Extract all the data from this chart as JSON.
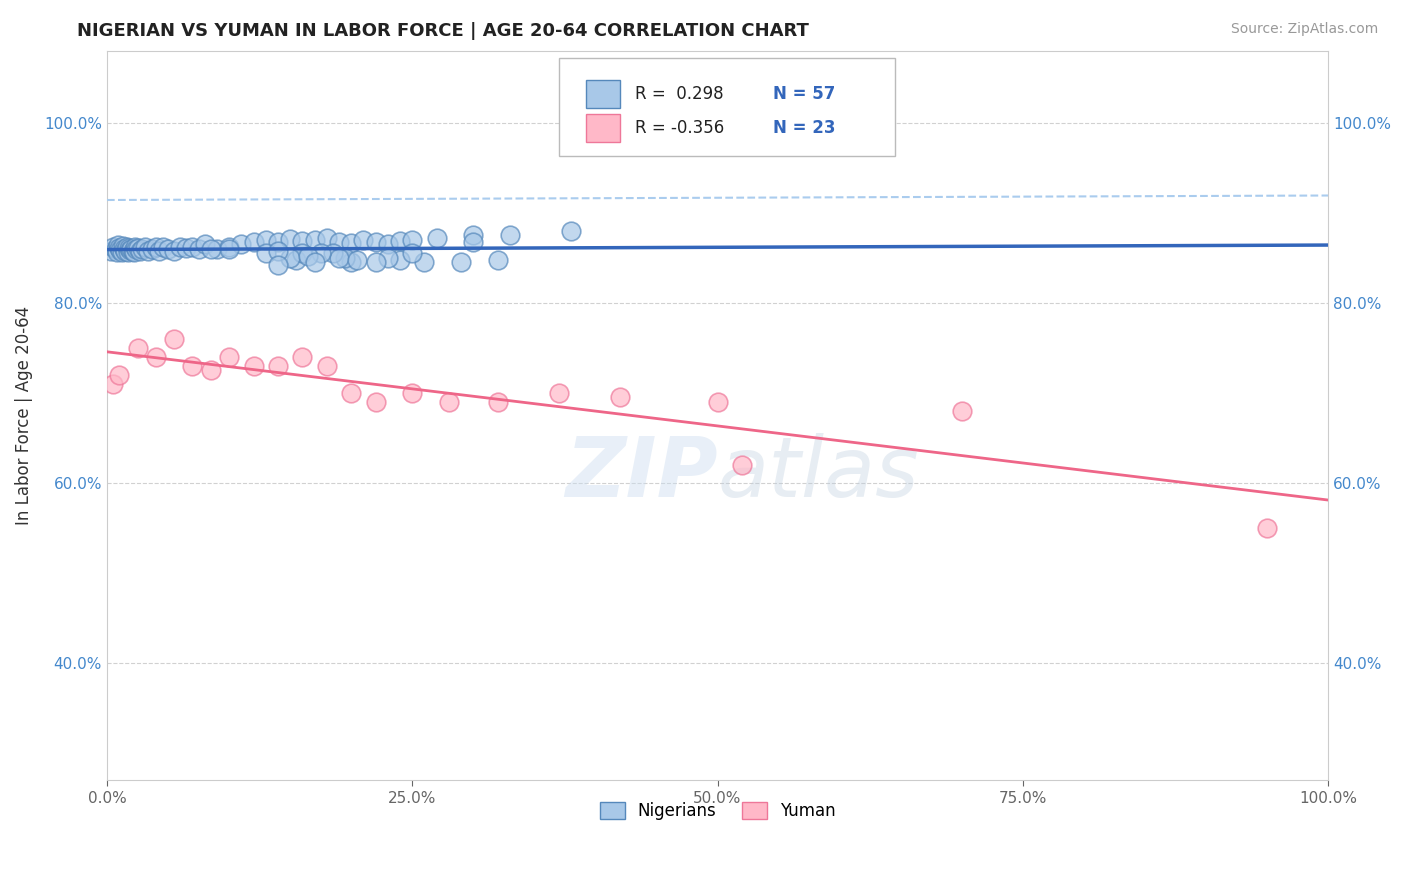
{
  "title": "NIGERIAN VS YUMAN IN LABOR FORCE | AGE 20-64 CORRELATION CHART",
  "source": "Source: ZipAtlas.com",
  "ylabel": "In Labor Force | Age 20-64",
  "xlim": [
    0.0,
    1.0
  ],
  "ylim": [
    0.27,
    1.08
  ],
  "xticks": [
    0.0,
    0.25,
    0.5,
    0.75,
    1.0
  ],
  "yticks": [
    0.4,
    0.6,
    0.8,
    1.0
  ],
  "xticklabels": [
    "0.0%",
    "25.0%",
    "50.0%",
    "75.0%",
    "100.0%"
  ],
  "yticklabels": [
    "40.0%",
    "60.0%",
    "80.0%",
    "100.0%"
  ],
  "legend_r_blue": "0.298",
  "legend_n_blue": "57",
  "legend_r_pink": "-0.356",
  "legend_n_pink": "23",
  "blue_scatter_color": "#A8C8E8",
  "blue_scatter_edge": "#5588BB",
  "pink_scatter_color": "#FFB8C8",
  "pink_scatter_edge": "#EE7799",
  "line_blue": "#3366BB",
  "line_pink": "#EE6688",
  "dashed_color": "#AACCEE",
  "watermark": "ZIPatlas",
  "background_color": "#FFFFFF",
  "grid_color": "#CCCCCC",
  "nigerians_x": [
    0.003,
    0.005,
    0.007,
    0.008,
    0.009,
    0.01,
    0.011,
    0.012,
    0.013,
    0.014,
    0.015,
    0.016,
    0.017,
    0.018,
    0.019,
    0.02,
    0.021,
    0.022,
    0.023,
    0.024,
    0.025,
    0.027,
    0.029,
    0.031,
    0.034,
    0.037,
    0.04,
    0.043,
    0.046,
    0.05,
    0.055,
    0.06,
    0.065,
    0.07,
    0.075,
    0.08,
    0.09,
    0.1,
    0.11,
    0.12,
    0.13,
    0.14,
    0.15,
    0.16,
    0.17,
    0.18,
    0.19,
    0.2,
    0.21,
    0.22,
    0.23,
    0.24,
    0.25,
    0.27,
    0.3,
    0.33,
    0.38
  ],
  "nigerians_y": [
    0.858,
    0.862,
    0.86,
    0.856,
    0.864,
    0.861,
    0.859,
    0.857,
    0.863,
    0.86,
    0.858,
    0.862,
    0.857,
    0.861,
    0.859,
    0.86,
    0.858,
    0.856,
    0.862,
    0.86,
    0.861,
    0.858,
    0.86,
    0.862,
    0.858,
    0.86,
    0.862,
    0.858,
    0.862,
    0.86,
    0.858,
    0.862,
    0.861,
    0.862,
    0.86,
    0.865,
    0.86,
    0.862,
    0.865,
    0.868,
    0.87,
    0.868,
    0.871,
    0.869,
    0.87,
    0.872,
    0.868,
    0.866,
    0.87,
    0.868,
    0.865,
    0.869,
    0.87,
    0.872,
    0.875,
    0.875,
    0.88
  ],
  "nigerians_x_extra": [
    0.2,
    0.3,
    0.195,
    0.155,
    0.185,
    0.24,
    0.1,
    0.13,
    0.16,
    0.19,
    0.205,
    0.23,
    0.26,
    0.29,
    0.32,
    0.25,
    0.22,
    0.15,
    0.085,
    0.175,
    0.14,
    0.165,
    0.14,
    0.17
  ],
  "nigerians_y_extra": [
    0.845,
    0.868,
    0.85,
    0.848,
    0.855,
    0.848,
    0.86,
    0.855,
    0.855,
    0.85,
    0.848,
    0.85,
    0.845,
    0.845,
    0.848,
    0.855,
    0.845,
    0.85,
    0.86,
    0.855,
    0.858,
    0.852,
    0.842,
    0.845
  ],
  "yuman_x": [
    0.005,
    0.01,
    0.025,
    0.04,
    0.055,
    0.07,
    0.085,
    0.1,
    0.12,
    0.14,
    0.16,
    0.18,
    0.2,
    0.22,
    0.25,
    0.28,
    0.32,
    0.37,
    0.42,
    0.5,
    0.52,
    0.7,
    0.95
  ],
  "yuman_y": [
    0.71,
    0.72,
    0.75,
    0.74,
    0.76,
    0.73,
    0.725,
    0.74,
    0.73,
    0.73,
    0.74,
    0.73,
    0.7,
    0.69,
    0.7,
    0.69,
    0.69,
    0.7,
    0.695,
    0.69,
    0.62,
    0.68,
    0.55
  ]
}
